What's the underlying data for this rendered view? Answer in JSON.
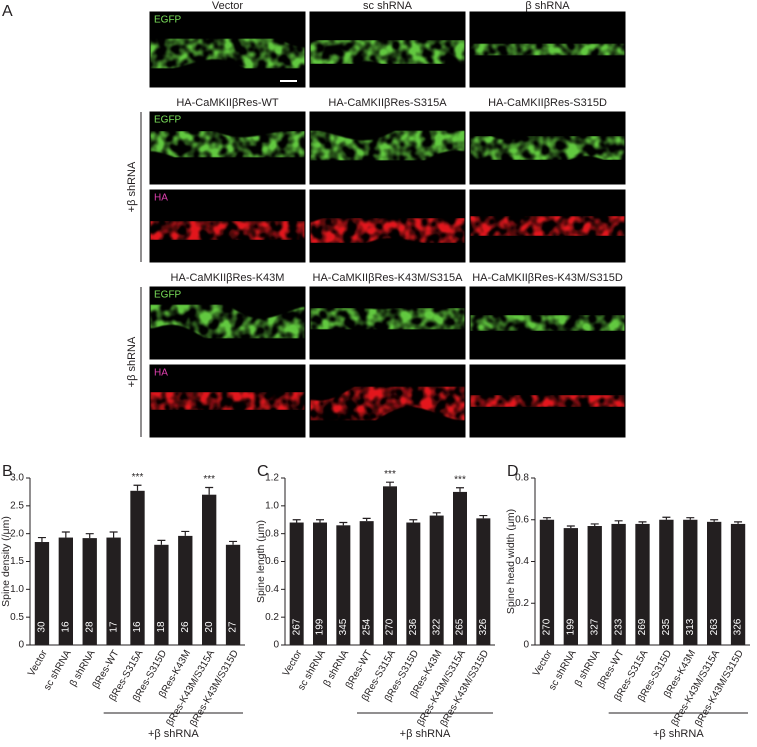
{
  "panel_a": {
    "label": "A",
    "top_headers": [
      "Vector",
      "sc shRNA",
      "β shRNA"
    ],
    "top_channel": "EGFP",
    "groups": [
      {
        "side_label": "+β shRNA",
        "headers": [
          "HA-CaMKIIβRes-WT",
          "HA-CaMKIIβRes-S315A",
          "HA-CaMKIIβRes-S315D"
        ],
        "channels": [
          "EGFP",
          "HA"
        ]
      },
      {
        "side_label": "+β shRNA",
        "headers": [
          "HA-CaMKIIβRes-K43M",
          "HA-CaMKIIβRes-K43M/S315A",
          "HA-CaMKIIβRes-K43M/S315D"
        ],
        "channels": [
          "EGFP",
          "HA"
        ]
      }
    ]
  },
  "chart_data": [
    {
      "type": "bar",
      "panel_label": "B",
      "y_label": "Spine density (/μm)",
      "categories": [
        "Vector",
        "sc shRNA",
        "β shRNA",
        "βRes-WT",
        "βRes-S315A",
        "βRes-S315D",
        "βRes-K43M",
        "βRes-K43M/S315A",
        "βRes-K43M/S315D"
      ],
      "values": [
        1.85,
        1.93,
        1.92,
        1.93,
        2.77,
        1.8,
        1.96,
        2.7,
        1.8
      ],
      "errors": [
        0.08,
        0.1,
        0.08,
        0.1,
        0.1,
        0.08,
        0.08,
        0.13,
        0.06
      ],
      "bar_labels": [
        30,
        16,
        28,
        17,
        16,
        18,
        26,
        20,
        27
      ],
      "value_annotations": [
        null,
        null,
        null,
        null,
        "***",
        null,
        null,
        "***",
        null
      ],
      "color": "#231f20",
      "ylim": [
        0,
        3
      ],
      "yticks": [
        0,
        0.5,
        {
          "value": 1,
          "label": "1.0"
        },
        1.5,
        {
          "value": 2,
          "label": "2.0"
        },
        2.5,
        {
          "value": 3,
          "label": "3.0"
        }
      ],
      "group": {
        "label": "+β shRNA",
        "first": "βRes-WT"
      }
    },
    {
      "type": "bar",
      "panel_label": "C",
      "y_label": "Spine length (μm)",
      "categories": [
        "Vector",
        "sc shRNA",
        "β shRNA",
        "βRes-WT",
        "βRes-S315A",
        "βRes-S315D",
        "βRes-K43M",
        "βRes-K43M/S315A",
        "βRes-K43M/S315D"
      ],
      "values": [
        0.88,
        0.88,
        0.86,
        0.89,
        1.14,
        0.88,
        0.93,
        1.1,
        0.91
      ],
      "errors": [
        0.02,
        0.02,
        0.02,
        0.02,
        0.03,
        0.02,
        0.02,
        0.03,
        0.02
      ],
      "bar_labels": [
        267,
        199,
        345,
        254,
        270,
        236,
        322,
        265,
        326
      ],
      "value_annotations": [
        null,
        null,
        null,
        null,
        "***",
        null,
        null,
        "***",
        null
      ],
      "color": "#231f20",
      "ylim": [
        0,
        1.2
      ],
      "yticks": [
        0,
        0.2,
        0.4,
        0.6,
        0.8,
        {
          "value": 1,
          "label": "1.0"
        },
        1.2
      ],
      "group": {
        "label": "+β shRNA",
        "first": "βRes-WT"
      }
    },
    {
      "type": "bar",
      "panel_label": "D",
      "y_label": "Spine head width (μm)",
      "categories": [
        "Vector",
        "sc shRNA",
        "β shRNA",
        "βRes-WT",
        "βRes-S315A",
        "βRes-S315D",
        "βRes-K43M",
        "βRes-K43M/S315A",
        "βRes-K43M/S315D"
      ],
      "values": [
        0.6,
        0.56,
        0.57,
        0.58,
        0.58,
        0.6,
        0.6,
        0.59,
        0.58
      ],
      "errors": [
        0.01,
        0.01,
        0.01,
        0.015,
        0.01,
        0.012,
        0.01,
        0.01,
        0.01
      ],
      "bar_labels": [
        270,
        199,
        327,
        233,
        269,
        235,
        313,
        263,
        326
      ],
      "value_annotations": [
        null,
        null,
        null,
        null,
        null,
        null,
        null,
        null,
        null
      ],
      "color": "#231f20",
      "ylim": [
        0,
        0.8
      ],
      "yticks": [
        0,
        0.2,
        0.4,
        0.6,
        0.8
      ],
      "group": {
        "label": "+β shRNA",
        "first": "βRes-WT"
      }
    }
  ]
}
